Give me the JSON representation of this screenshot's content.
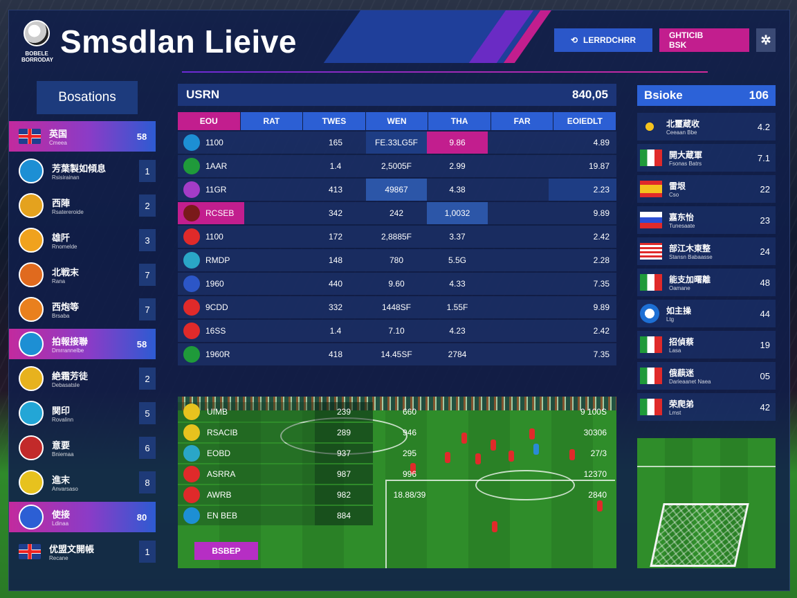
{
  "header": {
    "logo_text": "BOBELE BORRODAY",
    "title": "Smsdlan Lieive",
    "live_button": "LERRDCHRR",
    "stats_button_line1": "GHTICIB",
    "stats_button_line2": "BSK",
    "settings_icon": "gear-icon"
  },
  "sidebar": {
    "title": "Bosations",
    "items": [
      {
        "name": "英国",
        "sub": "Cmeea",
        "rank": "58",
        "highlight": true,
        "crest": "uk-flag-icon",
        "color": "#1f3f8f"
      },
      {
        "name": "芳葉製如傾息",
        "sub": "Rsisirainan",
        "rank": "1",
        "highlight": false,
        "crest": "club-crest-icon",
        "color": "#1d8fd4"
      },
      {
        "name": "西陣",
        "sub": "Rsatereroide",
        "rank": "2",
        "highlight": false,
        "crest": "club-crest-icon",
        "color": "#e4a21e"
      },
      {
        "name": "雄阡",
        "sub": "Rnomelde",
        "rank": "3",
        "highlight": false,
        "crest": "club-crest-icon",
        "color": "#f0a21e"
      },
      {
        "name": "北戦末",
        "sub": "Rana",
        "rank": "7",
        "highlight": false,
        "crest": "club-crest-icon",
        "color": "#e06a1e"
      },
      {
        "name": "西炮等",
        "sub": "Brsaba",
        "rank": "7",
        "highlight": false,
        "crest": "club-crest-icon",
        "color": "#e9801e"
      },
      {
        "name": "拍報接聯",
        "sub": "Dmrrannelbe",
        "rank": "58",
        "highlight": true,
        "crest": "club-crest-icon",
        "color": "#1d8fd4"
      },
      {
        "name": "絶霜芳徒",
        "sub": "Debasatsle",
        "rank": "2",
        "highlight": false,
        "crest": "club-crest-icon",
        "color": "#e7b21e"
      },
      {
        "name": "関印",
        "sub": "Rovalinn",
        "rank": "5",
        "highlight": false,
        "crest": "club-crest-icon",
        "color": "#23a6d6"
      },
      {
        "name": "意要",
        "sub": "Bniemaa",
        "rank": "6",
        "highlight": false,
        "crest": "club-crest-icon",
        "color": "#c22a2a"
      },
      {
        "name": "進末",
        "sub": "Anvarsaso",
        "rank": "8",
        "highlight": false,
        "crest": "club-crest-icon",
        "color": "#e7c21e"
      },
      {
        "name": "使接",
        "sub": "Ldinaa",
        "rank": "80",
        "highlight": true,
        "crest": "club-crest-icon",
        "color": "#2c5fd4"
      },
      {
        "name": "优盟文開帳",
        "sub": "Recane",
        "rank": "1",
        "highlight": false,
        "crest": "uk-flag-icon",
        "color": "#1f3f8f"
      }
    ]
  },
  "stats": {
    "title": "USRN",
    "total": "840,05",
    "columns": [
      "EOU",
      "RAT",
      "TWES",
      "WEN",
      "THA",
      "FAR",
      "EOIEDLT"
    ],
    "rows": [
      {
        "c": [
          "1100",
          "",
          "165",
          "FE.33LG5F",
          "9.86",
          "",
          "4.89"
        ],
        "icon": "swoosh-icon",
        "ic": "#1d8fd4",
        "hl": {
          "3": "hld",
          "4": "hlc"
        }
      },
      {
        "c": [
          "1AAR",
          "",
          "1.4",
          "2,5005F",
          "2.99",
          "",
          "19.87"
        ],
        "icon": "club-crest-icon",
        "ic": "#1f9a3a",
        "hl": {}
      },
      {
        "c": [
          "11GR",
          "",
          "413",
          "49867",
          "4.38",
          "",
          "2.23"
        ],
        "icon": "club-crest-icon",
        "ic": "#a43cc7",
        "hl": {
          "3": "hlb",
          "6": "hld"
        }
      },
      {
        "c": [
          "RCSEB",
          "",
          "342",
          "242",
          "1,0032",
          "",
          "9.89"
        ],
        "icon": "club-crest-icon",
        "ic": "#7a1a1a",
        "hl": {
          "0": "hlc",
          "4": "hlb"
        }
      },
      {
        "c": [
          "1100",
          "",
          "172",
          "2,8885F",
          "3.37",
          "",
          "2.42"
        ],
        "icon": "club-crest-icon",
        "ic": "#e02a2a",
        "hl": {}
      },
      {
        "c": [
          "RMDP",
          "",
          "148",
          "780",
          "5.5G",
          "",
          "2.28"
        ],
        "icon": "club-crest-icon",
        "ic": "#2aa6c7",
        "hl": {}
      },
      {
        "c": [
          "1960",
          "",
          "440",
          "9.60",
          "4.33",
          "",
          "7.35"
        ],
        "icon": "club-crest-icon",
        "ic": "#2c56c7",
        "hl": {}
      },
      {
        "c": [
          "9CDD",
          "",
          "332",
          "1448SF",
          "1.55F",
          "",
          "9.89"
        ],
        "icon": "club-crest-icon",
        "ic": "#e02a2a",
        "hl": {}
      },
      {
        "c": [
          "16SS",
          "",
          "1.4",
          "7.10",
          "4.23",
          "",
          "2.42"
        ],
        "icon": "club-crest-icon",
        "ic": "#e02a2a",
        "hl": {}
      },
      {
        "c": [
          "1960R",
          "",
          "418",
          "14.45SF",
          "2784",
          "",
          "7.35"
        ],
        "icon": "plus-icon",
        "ic": "#1f9a3a",
        "hl": {}
      }
    ]
  },
  "pitch_rows": [
    {
      "a": "UIMB",
      "b": "239",
      "c": "660",
      "d": "9 100S",
      "ic": "#e7c21e",
      "icon": "club-crest-icon"
    },
    {
      "a": "RSACIB",
      "b": "289",
      "c": "946",
      "d": "30306",
      "ic": "#e7c21e",
      "icon": "club-crest-icon"
    },
    {
      "a": "EOBD",
      "b": "937",
      "c": "295",
      "d": "27/3",
      "ic": "#2aa6c7",
      "icon": "club-crest-icon"
    },
    {
      "a": "ASRRA",
      "b": "987",
      "c": "996",
      "d": "12370",
      "ic": "#e02a2a",
      "icon": "club-crest-icon"
    },
    {
      "a": "AWRB",
      "b": "982",
      "c": "18.88/39",
      "d": "2840",
      "ic": "#e02a2a",
      "icon": "club-crest-icon"
    },
    {
      "a": "EN BEB",
      "b": "884",
      "c": "",
      "d": "",
      "ic": "#1d8fd4",
      "icon": "club-crest-icon"
    }
  ],
  "page_button": "BSBEP",
  "right": {
    "title": "Bsioke",
    "value": "106",
    "items": [
      {
        "name": "北璽蔵收",
        "sub": "Ceeaan Bbe",
        "v": "4.2",
        "flag": "eu-stars-flag-icon"
      },
      {
        "name": "開大蔵軍",
        "sub": "Fsonas Batrs",
        "v": "7.1",
        "flag": "italy-flag-icon"
      },
      {
        "name": "雷垠",
        "sub": "Cso",
        "v": "22",
        "flag": "spain-flag-icon"
      },
      {
        "name": "嘉东怡",
        "sub": "Tunesaate",
        "v": "23",
        "flag": "slovenia-flag-icon"
      },
      {
        "name": "部江木東整",
        "sub": "Stansn Babaasse",
        "v": "24",
        "flag": "usa-flag-icon"
      },
      {
        "name": "能支加曙離",
        "sub": "Oamane",
        "v": "48",
        "flag": "italy-flag-icon"
      },
      {
        "name": "如主操",
        "sub": "Ltg",
        "v": "44",
        "flag": "football-flag-icon"
      },
      {
        "name": "招偵蔡",
        "sub": "Lasa",
        "v": "19",
        "flag": "italy-flag-icon"
      },
      {
        "name": "俄蕻迷",
        "sub": "Darieaanet Naea",
        "v": "05",
        "flag": "italy-flag-icon"
      },
      {
        "name": "荣爬弟",
        "sub": "Lmst",
        "v": "42",
        "flag": "italy-flag-icon"
      }
    ]
  },
  "colors": {
    "accent_pink": "#c21e8e",
    "accent_blue": "#2c5fd4",
    "panel": "#101e4a"
  }
}
